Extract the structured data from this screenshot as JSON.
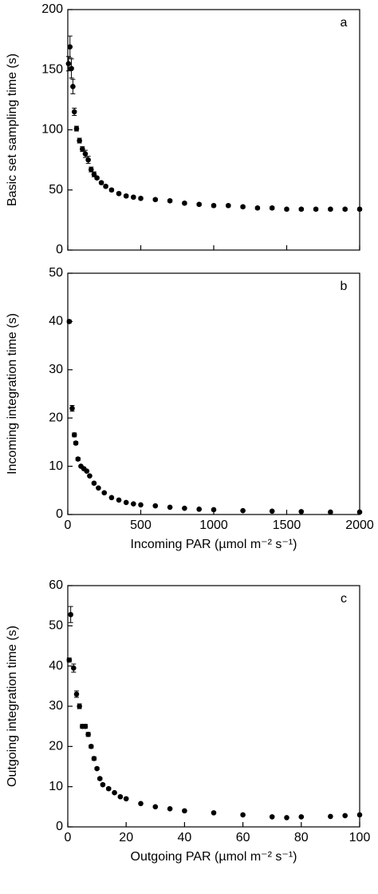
{
  "chart_data": [
    {
      "type": "scatter",
      "panel_label": "a",
      "ylabel": "Basic set sampling time (s)",
      "xlim": [
        0,
        2000
      ],
      "xticks": [
        0,
        500,
        1000,
        1500,
        2000
      ],
      "xtick_labels": false,
      "ylim": [
        0,
        200
      ],
      "yticks": [
        0,
        50,
        100,
        150,
        200
      ],
      "color": "#000000",
      "x": [
        5,
        15,
        25,
        35,
        45,
        60,
        80,
        100,
        120,
        140,
        160,
        180,
        200,
        230,
        260,
        300,
        350,
        400,
        450,
        500,
        600,
        700,
        800,
        900,
        1000,
        1100,
        1200,
        1300,
        1400,
        1500,
        1600,
        1700,
        1800,
        1900,
        2000
      ],
      "values": [
        155,
        169,
        151,
        136,
        115,
        101,
        91,
        84,
        80,
        75,
        67,
        63,
        60,
        56,
        53,
        50,
        47,
        45,
        44,
        43,
        42,
        41,
        39,
        38,
        37,
        37,
        36,
        35,
        35,
        34,
        34,
        34,
        34,
        34,
        34
      ],
      "errors": [
        6,
        9,
        8,
        6,
        3,
        2,
        2,
        2,
        3,
        3,
        2,
        2,
        1,
        1,
        1,
        1,
        1,
        1,
        1,
        1,
        1,
        1,
        1,
        1,
        1,
        1,
        1,
        1,
        1,
        1,
        1,
        1,
        1,
        1,
        1
      ]
    },
    {
      "type": "scatter",
      "panel_label": "b",
      "ylabel": "Incoming integration time (s)",
      "xlabel": "Incoming PAR (µmol m⁻² s⁻¹)",
      "xlim": [
        0,
        2000
      ],
      "xticks": [
        0,
        500,
        1000,
        1500,
        2000
      ],
      "xtick_labels": true,
      "ylim": [
        0,
        50
      ],
      "yticks": [
        0,
        10,
        20,
        30,
        40,
        50
      ],
      "color": "#000000",
      "x": [
        10,
        30,
        45,
        55,
        70,
        90,
        110,
        130,
        150,
        180,
        210,
        250,
        300,
        350,
        400,
        450,
        500,
        600,
        700,
        800,
        900,
        1000,
        1200,
        1400,
        1600,
        1800,
        2000
      ],
      "values": [
        40,
        22,
        16.5,
        14.8,
        11.5,
        10,
        9.5,
        9,
        8,
        6.5,
        5.5,
        4.5,
        3.5,
        3,
        2.5,
        2.2,
        2,
        1.8,
        1.5,
        1.3,
        1.1,
        1,
        0.8,
        0.7,
        0.6,
        0.5,
        0.5
      ],
      "errors": [
        0.3,
        0.6,
        0.4,
        0.3,
        0.3,
        0.2,
        0.2,
        0.2,
        0.2,
        0.2,
        0.2,
        0.2,
        0.1,
        0.1,
        0.1,
        0.1,
        0.1,
        0.1,
        0.1,
        0.1,
        0.1,
        0.1,
        0.1,
        0.1,
        0.1,
        0.1,
        0.1
      ]
    },
    {
      "type": "scatter",
      "panel_label": "c",
      "ylabel": "Outgoing integration time (s)",
      "xlabel": "Outgoing PAR (µmol m⁻² s⁻¹)",
      "xlim": [
        0,
        100
      ],
      "xticks": [
        0,
        20,
        40,
        60,
        80,
        100
      ],
      "xtick_labels": true,
      "ylim": [
        0,
        60
      ],
      "yticks": [
        0,
        10,
        20,
        30,
        40,
        50,
        60
      ],
      "color": "#000000",
      "x": [
        0.5,
        1,
        2,
        3,
        4,
        5,
        6,
        7,
        8,
        9,
        10,
        11,
        12,
        14,
        16,
        18,
        20,
        25,
        30,
        35,
        40,
        50,
        60,
        70,
        75,
        80,
        90,
        95,
        100
      ],
      "values": [
        41.5,
        52.8,
        39.5,
        33,
        30,
        25,
        25,
        23,
        20,
        17,
        14.5,
        12,
        10.5,
        9.5,
        8.5,
        7.5,
        7,
        5.8,
        5,
        4.5,
        4,
        3.5,
        3,
        2.5,
        2.3,
        2.5,
        2.6,
        2.8,
        3
      ],
      "errors": [
        0.5,
        2,
        1,
        0.8,
        0.6,
        0.5,
        0.5,
        0.5,
        0.4,
        0.4,
        0.3,
        0.3,
        0.3,
        0.3,
        0.2,
        0.2,
        0.2,
        0.2,
        0.2,
        0.2,
        0.2,
        0.2,
        0.2,
        0.2,
        0.2,
        0.2,
        0.2,
        0.2,
        0.2
      ]
    }
  ]
}
